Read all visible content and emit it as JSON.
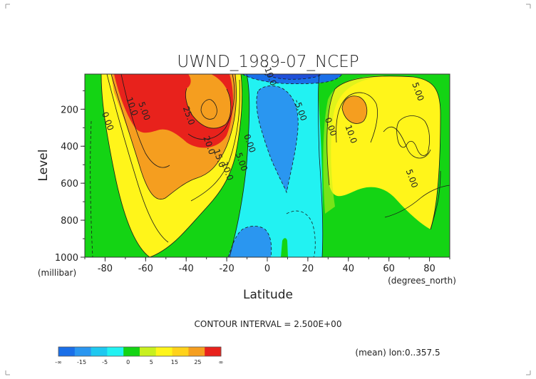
{
  "chart_data": {
    "type": "contour",
    "title": "UWND_1989-07_NCEP",
    "xlabel": "Latitude",
    "ylabel": "Level",
    "x_unit_label": "(degrees_north)",
    "y_unit_label": "(millibar)",
    "xlim": [
      -90,
      90
    ],
    "ylim": [
      1000,
      10
    ],
    "x_ticks": [
      -80,
      -60,
      -40,
      -20,
      0,
      20,
      40,
      60,
      80
    ],
    "x_tick_labels": [
      "-80",
      "-60",
      "-40",
      "-20",
      "0",
      "20",
      "40",
      "60",
      "80"
    ],
    "y_ticks": [
      200,
      400,
      600,
      800,
      1000
    ],
    "y_tick_labels": [
      "200",
      "400",
      "600",
      "800",
      "1000"
    ],
    "contour_interval_text": "CONTOUR INTERVAL = 2.500E+00",
    "footer_note": "(mean) lon:0..357.5",
    "contour_labels": [
      {
        "text": "10.0",
        "lat": -68,
        "level": 190
      },
      {
        "text": "5.00",
        "lat": -62,
        "level": 215
      },
      {
        "text": "0.00",
        "lat": -80,
        "level": 270
      },
      {
        "text": "25.0",
        "lat": -40,
        "level": 240
      },
      {
        "text": "20.0",
        "lat": -30,
        "level": 400
      },
      {
        "text": "15.0",
        "lat": -25,
        "level": 470
      },
      {
        "text": "10.0",
        "lat": -21,
        "level": 540
      },
      {
        "text": "5.00",
        "lat": -14,
        "level": 490
      },
      {
        "text": "0.00",
        "lat": -10,
        "level": 390
      },
      {
        "text": "-10.0",
        "lat": 0,
        "level": 20
      },
      {
        "text": "-5.00",
        "lat": 15,
        "level": 210
      },
      {
        "text": "0.00",
        "lat": 30,
        "level": 300
      },
      {
        "text": "10.0",
        "lat": 40,
        "level": 340
      },
      {
        "text": "5.00",
        "lat": 73,
        "level": 110
      },
      {
        "text": "5.00",
        "lat": 70,
        "level": 580
      }
    ],
    "fields": [
      {
        "name": "orange",
        "level": 15,
        "color": "#f59e1f"
      },
      {
        "name": "red",
        "level": 25,
        "color": "#e8221c"
      }
    ],
    "colorbar": {
      "colors": [
        "#1a6fe8",
        "#2a96f0",
        "#1ec8f0",
        "#22f2f2",
        "#14d414",
        "#c8f01e",
        "#fff51a",
        "#ffd21a",
        "#f59e1f",
        "#e8221c"
      ],
      "labels": [
        "-∞",
        "-15",
        "-5",
        "0",
        "5",
        "15",
        "25",
        "∞"
      ]
    }
  }
}
